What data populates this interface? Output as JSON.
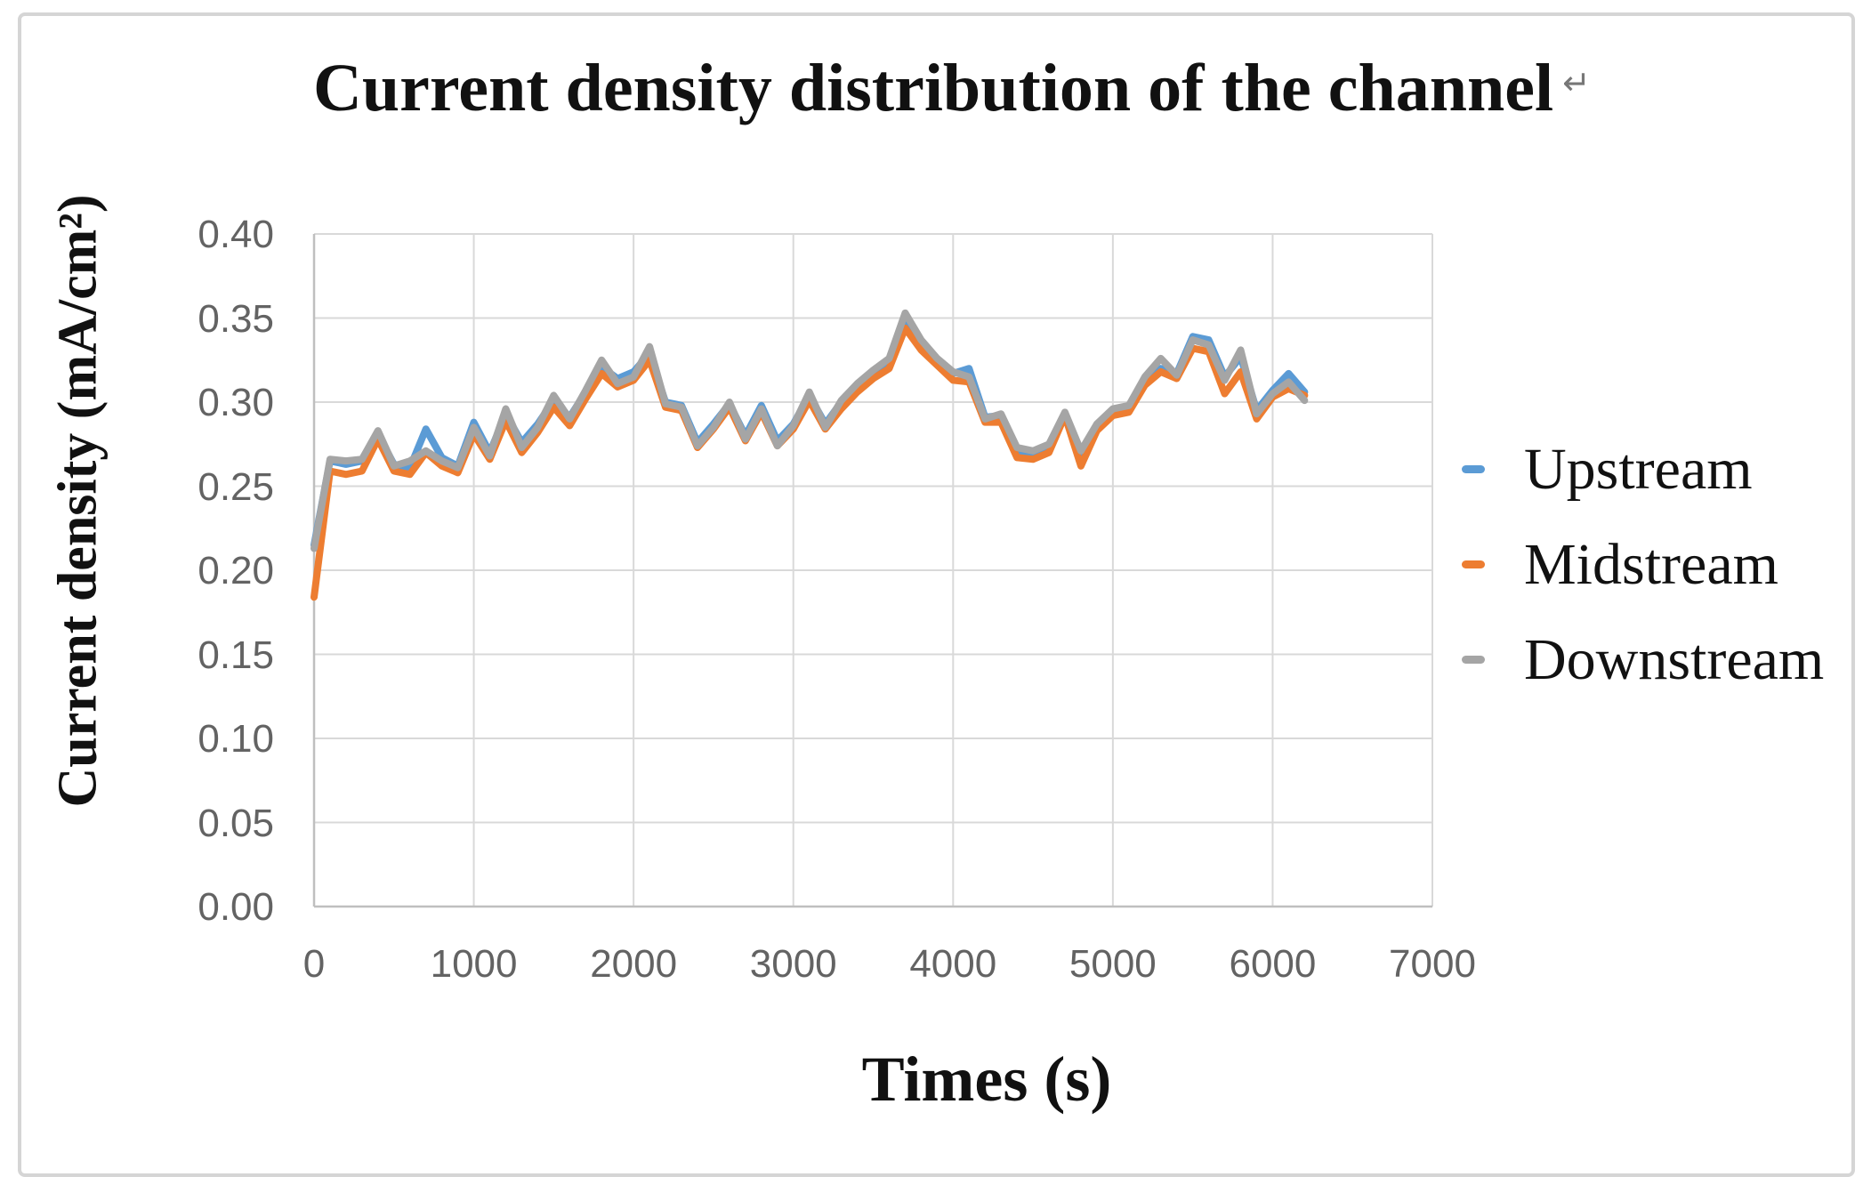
{
  "page": {
    "paragraph_mark": "↵"
  },
  "chart_data": {
    "type": "line",
    "title": "Current density distribution of the channel",
    "xlabel": "Times (s)",
    "ylabel": "Current density (mA/cm²)",
    "xlim": [
      0,
      7000
    ],
    "ylim": [
      0.0,
      0.4
    ],
    "grid": true,
    "legend_position": "right",
    "x_ticks": [
      0,
      1000,
      2000,
      3000,
      4000,
      5000,
      6000,
      7000
    ],
    "x_tick_labels": [
      "0",
      "1000",
      "2000",
      "3000",
      "4000",
      "5000",
      "6000",
      "7000"
    ],
    "y_ticks": [
      0.0,
      0.05,
      0.1,
      0.15,
      0.2,
      0.25,
      0.3,
      0.35,
      0.4
    ],
    "y_tick_labels": [
      "0.00",
      "0.05",
      "0.10",
      "0.15",
      "0.20",
      "0.25",
      "0.30",
      "0.35",
      "0.40"
    ],
    "grid_color": "#d9d9d9",
    "axis_color": "#bfbfbf",
    "x": [
      0,
      100,
      200,
      300,
      400,
      500,
      600,
      700,
      800,
      900,
      1000,
      1100,
      1200,
      1300,
      1400,
      1500,
      1600,
      1700,
      1800,
      1900,
      2000,
      2100,
      2200,
      2300,
      2400,
      2500,
      2600,
      2700,
      2800,
      2900,
      3000,
      3100,
      3200,
      3300,
      3400,
      3500,
      3600,
      3700,
      3800,
      3900,
      4000,
      4100,
      4200,
      4300,
      4400,
      4500,
      4600,
      4700,
      4800,
      4900,
      5000,
      5100,
      5200,
      5300,
      5400,
      5500,
      5600,
      5700,
      5800,
      5900,
      6000,
      6100,
      6200
    ],
    "series": [
      {
        "name": "Upstream",
        "color": "#5B9BD5",
        "values": [
          0.215,
          0.265,
          0.263,
          0.265,
          0.281,
          0.263,
          0.261,
          0.284,
          0.267,
          0.262,
          0.288,
          0.27,
          0.293,
          0.276,
          0.287,
          0.301,
          0.291,
          0.306,
          0.321,
          0.314,
          0.318,
          0.329,
          0.3,
          0.298,
          0.276,
          0.287,
          0.299,
          0.28,
          0.298,
          0.277,
          0.287,
          0.304,
          0.287,
          0.3,
          0.31,
          0.318,
          0.324,
          0.348,
          0.335,
          0.325,
          0.317,
          0.32,
          0.291,
          0.292,
          0.271,
          0.269,
          0.273,
          0.293,
          0.268,
          0.286,
          0.295,
          0.297,
          0.313,
          0.32,
          0.317,
          0.339,
          0.337,
          0.315,
          0.327,
          0.295,
          0.307,
          0.317,
          0.306
        ]
      },
      {
        "name": "Midstream",
        "color": "#ED7D31",
        "values": [
          0.184,
          0.259,
          0.257,
          0.259,
          0.278,
          0.259,
          0.257,
          0.27,
          0.262,
          0.258,
          0.281,
          0.266,
          0.289,
          0.27,
          0.282,
          0.297,
          0.286,
          0.302,
          0.317,
          0.309,
          0.313,
          0.325,
          0.297,
          0.295,
          0.273,
          0.284,
          0.297,
          0.277,
          0.294,
          0.274,
          0.284,
          0.301,
          0.284,
          0.296,
          0.306,
          0.314,
          0.32,
          0.344,
          0.331,
          0.322,
          0.313,
          0.312,
          0.288,
          0.288,
          0.267,
          0.266,
          0.27,
          0.292,
          0.262,
          0.283,
          0.292,
          0.294,
          0.31,
          0.318,
          0.314,
          0.332,
          0.33,
          0.305,
          0.318,
          0.29,
          0.303,
          0.308,
          0.304
        ]
      },
      {
        "name": "Downstream",
        "color": "#A5A5A5",
        "values": [
          0.213,
          0.266,
          0.265,
          0.266,
          0.283,
          0.262,
          0.265,
          0.271,
          0.265,
          0.261,
          0.285,
          0.268,
          0.296,
          0.273,
          0.285,
          0.304,
          0.29,
          0.307,
          0.325,
          0.311,
          0.315,
          0.333,
          0.299,
          0.297,
          0.274,
          0.285,
          0.3,
          0.278,
          0.296,
          0.274,
          0.286,
          0.306,
          0.285,
          0.301,
          0.311,
          0.319,
          0.326,
          0.353,
          0.337,
          0.326,
          0.318,
          0.315,
          0.29,
          0.293,
          0.273,
          0.271,
          0.275,
          0.294,
          0.271,
          0.287,
          0.296,
          0.298,
          0.315,
          0.326,
          0.316,
          0.337,
          0.334,
          0.313,
          0.331,
          0.293,
          0.305,
          0.312,
          0.301
        ]
      }
    ]
  }
}
